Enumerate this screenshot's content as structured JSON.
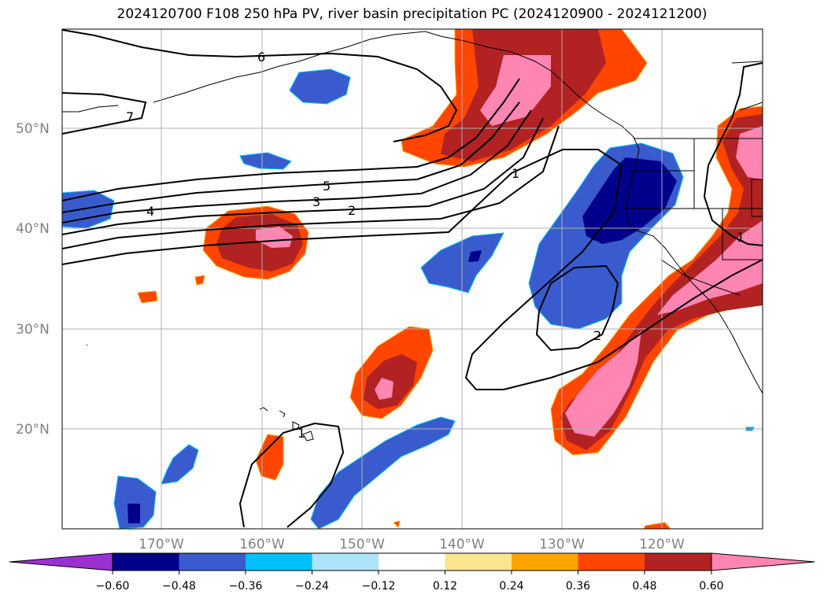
{
  "title": "2024120700 F108 250 hPa PV, river basin precipitation PC (2024120900 - 2024121200)",
  "axes": {
    "lat_labels": [
      "50°N",
      "40°N",
      "30°N",
      "20°N"
    ],
    "lon_labels": [
      "170°W",
      "160°W",
      "150°W",
      "140°W",
      "130°W",
      "120°W"
    ],
    "lon_range": [
      -180,
      -110
    ],
    "lat_range": [
      10,
      60
    ],
    "grid": true
  },
  "pv_contour_labels": [
    "6",
    "7",
    "5",
    "4",
    "3",
    "2",
    "1",
    "1",
    "2",
    "1"
  ],
  "colorbar": {
    "ticks": [
      "−0.60",
      "−0.48",
      "−0.36",
      "−0.24",
      "−0.12",
      "0.12",
      "0.24",
      "0.36",
      "0.48",
      "0.60"
    ],
    "colors": {
      "under": "#9b30d0",
      "bins": [
        "#00008b",
        "#3a5bcd",
        "#00bfff",
        "#ade3fb",
        "#ffffff",
        "#fbe48f",
        "#ffa500",
        "#ff4500",
        "#b22222",
        "#ff85b3"
      ],
      "over": "#ff85b3"
    },
    "extend": "both"
  },
  "colors": {
    "land_outline": "#000000",
    "grid": "#b0b0b0",
    "contour": "#000000"
  }
}
